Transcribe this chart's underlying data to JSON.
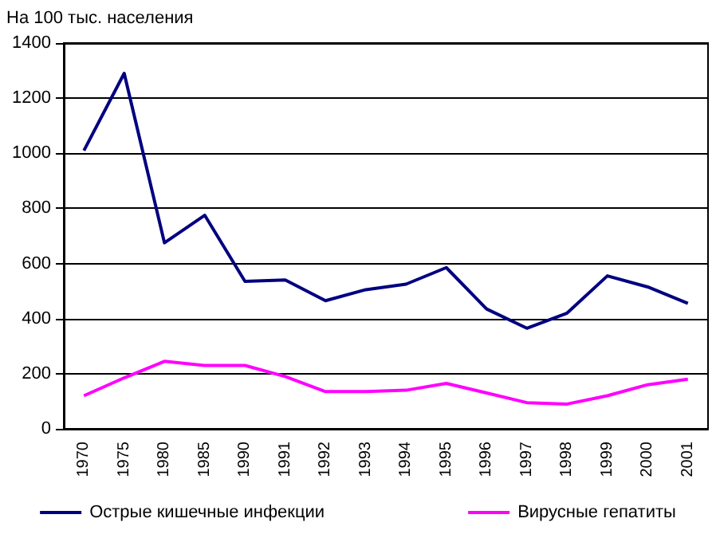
{
  "chart_data": {
    "type": "line",
    "ylabel": "На 100 тыс. населения",
    "categories": [
      "1970",
      "1975",
      "1980",
      "1985",
      "1990",
      "1991",
      "1992",
      "1993",
      "1994",
      "1995",
      "1996",
      "1997",
      "1998",
      "1999",
      "2000",
      "2001"
    ],
    "series": [
      {
        "name": "Острые кишечные инфекции",
        "color": "#000080",
        "values": [
          1010,
          1290,
          675,
          775,
          535,
          540,
          465,
          505,
          525,
          585,
          435,
          365,
          420,
          555,
          515,
          455
        ]
      },
      {
        "name": "Вирусные гепатиты",
        "color": "#ff00ff",
        "values": [
          120,
          185,
          245,
          230,
          230,
          190,
          135,
          135,
          140,
          165,
          130,
          95,
          90,
          120,
          160,
          180
        ]
      }
    ],
    "ylim": [
      0,
      1400
    ],
    "yticks": [
      0,
      200,
      400,
      600,
      800,
      1000,
      1200,
      1400
    ],
    "grid": "y",
    "legend": "bottom",
    "marker": "none",
    "line_style": "solid"
  }
}
